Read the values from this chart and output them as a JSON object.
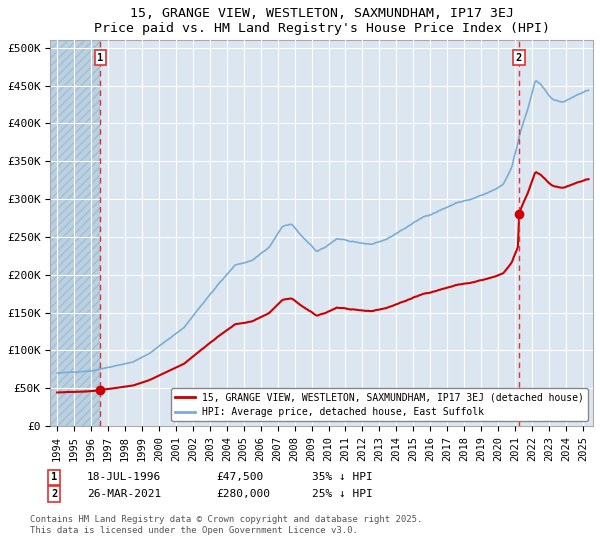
{
  "title": "15, GRANGE VIEW, WESTLETON, SAXMUNDHAM, IP17 3EJ",
  "subtitle": "Price paid vs. HM Land Registry's House Price Index (HPI)",
  "background_color": "#dce6f1",
  "plot_background": "#dce6f1",
  "ylabel_ticks": [
    "£0",
    "£50K",
    "£100K",
    "£150K",
    "£200K",
    "£250K",
    "£300K",
    "£350K",
    "£400K",
    "£450K",
    "£500K"
  ],
  "ytick_values": [
    0,
    50000,
    100000,
    150000,
    200000,
    250000,
    300000,
    350000,
    400000,
    450000,
    500000
  ],
  "xmin": 1993.6,
  "xmax": 2025.6,
  "ymin": 0,
  "ymax": 510000,
  "annotation1": {
    "x": 1996.54,
    "label": "1",
    "date": "18-JUL-1996",
    "price": 47500
  },
  "annotation2": {
    "x": 2021.23,
    "label": "2",
    "date": "26-MAR-2021",
    "price": 280000
  },
  "legend_line1": "15, GRANGE VIEW, WESTLETON, SAXMUNDHAM, IP17 3EJ (detached house)",
  "legend_line2": "HPI: Average price, detached house, East Suffolk",
  "footer1": "Contains HM Land Registry data © Crown copyright and database right 2025.",
  "footer2": "This data is licensed under the Open Government Licence v3.0.",
  "hpi_color": "#7aadd4",
  "price_color": "#cc0000",
  "dashed_line_color": "#dd3333",
  "hatch_color": "#b8cfe0"
}
